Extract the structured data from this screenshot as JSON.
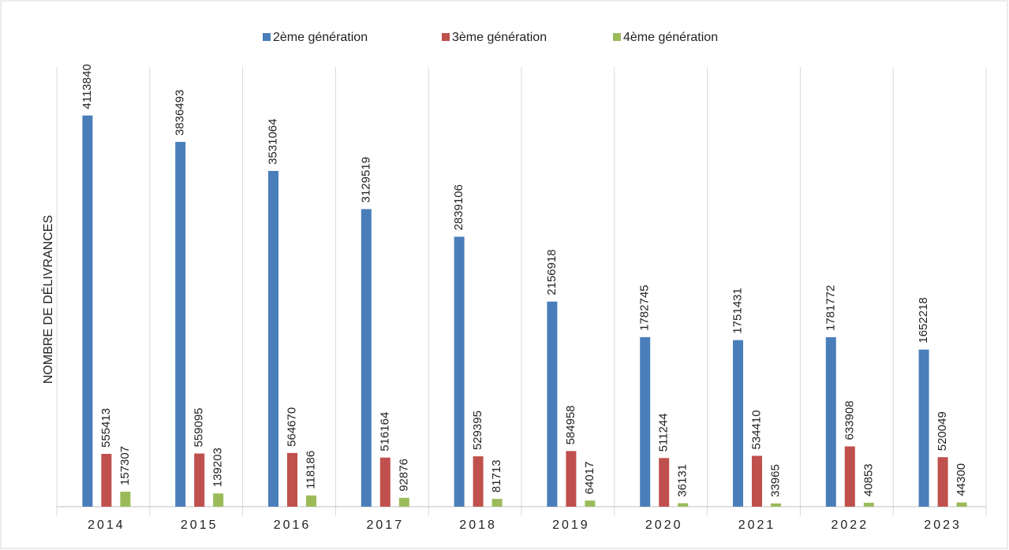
{
  "chart_data": {
    "type": "bar",
    "ylabel": "NOMBRE DE DÉLIVRANCES",
    "categories": [
      "2014",
      "2015",
      "2016",
      "2017",
      "2018",
      "2019",
      "2020",
      "2021",
      "2022",
      "2023"
    ],
    "series": [
      {
        "name": "2ème génération",
        "color": "#4a7ebb",
        "values": [
          4113840,
          3836493,
          3531064,
          3129519,
          2839106,
          2156918,
          1782745,
          1751431,
          1781772,
          1652218
        ]
      },
      {
        "name": "3ème génération",
        "color": "#c0504d",
        "values": [
          555413,
          559095,
          564670,
          516164,
          529395,
          584958,
          511244,
          534410,
          633908,
          520049
        ]
      },
      {
        "name": "4ème génération",
        "color": "#9bbb59",
        "values": [
          157307,
          139203,
          118186,
          92876,
          81713,
          64017,
          36131,
          33965,
          40853,
          44300
        ]
      }
    ],
    "ylim": [
      0,
      4500000
    ],
    "legend": "top"
  }
}
